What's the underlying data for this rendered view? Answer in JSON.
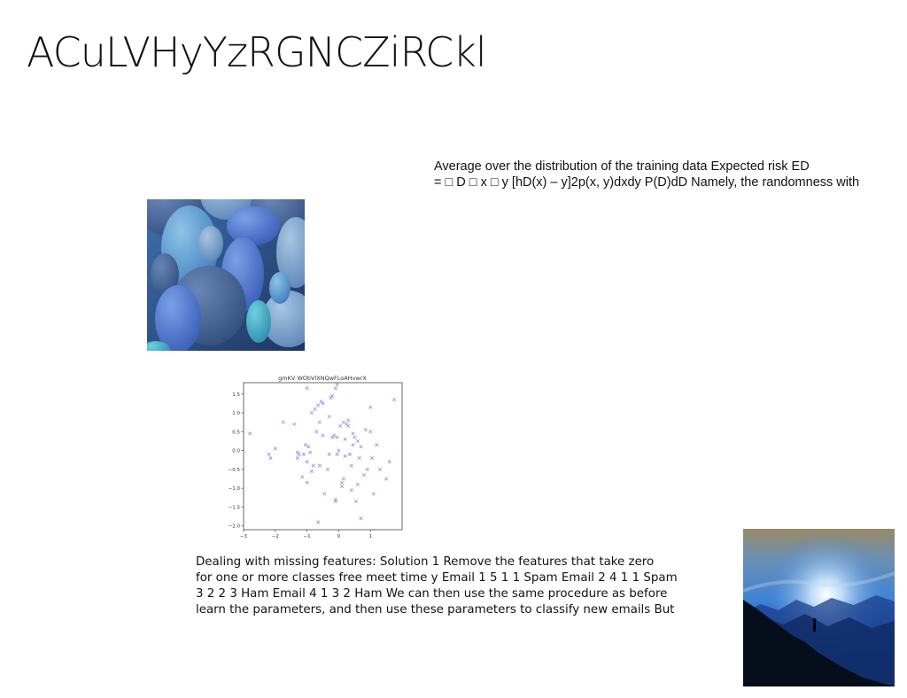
{
  "slide": {
    "title": "ACuLVHyYzRGNCZiRCkl",
    "formula_lines": [
      "Average over the distribution of the training data Expected risk ED",
      "= □ D □ x □ y [hD(x) – y]2p(x, y)dxdy P(D)dD Namely, the randomness with"
    ],
    "body_lines": [
      "Dealing with missing features: Solution 1 Remove the features that take zero",
      "for one or more classes free meet time y Email 1 5 1 1 Spam Email 2 4 1 1 Spam",
      "3 2 2 3 Ham Email 4 1 3 2 Ham We can then use the same procedure as before",
      "learn the parameters, and then use these parameters to classify new emails But"
    ]
  },
  "images": {
    "bubbles": "blue-overlapping-circles-image",
    "mountain": "blue-mountain-sunrise-image"
  },
  "chart_data": {
    "type": "scatter",
    "title": "gmKV WObVlXNQwFLoAHvwrX",
    "marker": "x",
    "color": "#7b7bd6",
    "xlim": [
      -3,
      2
    ],
    "ylim": [
      -2.1,
      1.8
    ],
    "xticks": [
      -3,
      -2,
      -1,
      0,
      1
    ],
    "yticks": [
      -2.0,
      -1.5,
      -1.0,
      -0.5,
      0.0,
      0.5,
      1.0,
      1.5
    ],
    "points": [
      [
        -2.8,
        0.45
      ],
      [
        -2.2,
        -0.1
      ],
      [
        -2.15,
        -0.2
      ],
      [
        -2.0,
        0.05
      ],
      [
        -1.75,
        0.75
      ],
      [
        -1.4,
        0.7
      ],
      [
        -1.3,
        -0.05
      ],
      [
        -1.3,
        -0.2
      ],
      [
        -1.1,
        -0.1
      ],
      [
        -1.05,
        0.15
      ],
      [
        -1.0,
        -0.3
      ],
      [
        -0.95,
        0.1
      ],
      [
        -0.9,
        -0.05
      ],
      [
        -0.85,
        -0.55
      ],
      [
        -1.15,
        -0.7
      ],
      [
        -1.0,
        -0.85
      ],
      [
        -0.8,
        -0.4
      ],
      [
        -0.7,
        0.5
      ],
      [
        -0.6,
        -0.4
      ],
      [
        -0.5,
        0.4
      ],
      [
        -0.45,
        -1.15
      ],
      [
        -0.35,
        -0.5
      ],
      [
        -0.3,
        -0.1
      ],
      [
        -0.2,
        0.35
      ],
      [
        -0.15,
        0.4
      ],
      [
        -0.1,
        -1.3
      ],
      [
        -0.1,
        -1.35
      ],
      [
        -0.05,
        -0.1
      ],
      [
        0.0,
        0.0
      ],
      [
        0.05,
        0.65
      ],
      [
        0.1,
        -0.85
      ],
      [
        0.1,
        -0.95
      ],
      [
        0.15,
        0.75
      ],
      [
        0.2,
        -0.15
      ],
      [
        0.25,
        0.7
      ],
      [
        0.3,
        0.8
      ],
      [
        0.35,
        -0.1
      ],
      [
        0.4,
        -0.4
      ],
      [
        0.4,
        -1.05
      ],
      [
        0.45,
        0.45
      ],
      [
        0.5,
        0.35
      ],
      [
        0.55,
        -1.35
      ],
      [
        0.6,
        -0.9
      ],
      [
        0.65,
        -0.2
      ],
      [
        0.7,
        0.1
      ],
      [
        0.8,
        -0.65
      ],
      [
        0.85,
        0.55
      ],
      [
        0.9,
        -0.5
      ],
      [
        1.0,
        0.5
      ],
      [
        1.05,
        -0.2
      ],
      [
        1.1,
        -1.15
      ],
      [
        1.2,
        0.15
      ],
      [
        1.3,
        -0.5
      ],
      [
        1.5,
        -0.75
      ],
      [
        1.6,
        -0.3
      ],
      [
        1.75,
        1.35
      ],
      [
        1.0,
        1.15
      ],
      [
        -0.05,
        1.75
      ],
      [
        -0.1,
        1.65
      ],
      [
        -0.2,
        1.45
      ],
      [
        -0.25,
        1.4
      ],
      [
        -0.5,
        1.25
      ],
      [
        -0.55,
        1.3
      ],
      [
        -0.65,
        1.2
      ],
      [
        -0.75,
        1.1
      ],
      [
        -0.85,
        1.0
      ],
      [
        -1.0,
        1.65
      ],
      [
        -0.6,
        0.75
      ],
      [
        0.3,
        0.65
      ],
      [
        0.2,
        0.3
      ],
      [
        0.7,
        -1.8
      ],
      [
        -0.65,
        -1.9
      ],
      [
        -0.05,
        0.35
      ],
      [
        0.15,
        -0.75
      ],
      [
        0.45,
        0.15
      ],
      [
        -1.25,
        -0.1
      ],
      [
        -0.3,
        0.9
      ],
      [
        0.6,
        0.25
      ]
    ]
  }
}
